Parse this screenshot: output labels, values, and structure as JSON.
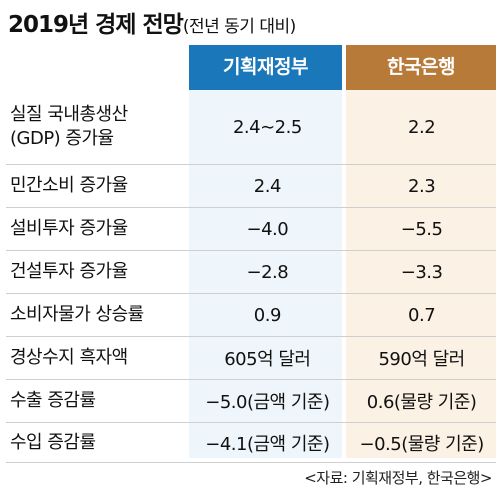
{
  "title": {
    "main": "2019년 경제 전망",
    "sub": "(전년 동기 대비)"
  },
  "columns": {
    "mof": "기획재정부",
    "bok": "한국은행"
  },
  "rows": [
    {
      "label": "실질 국내총생산\n(GDP) 증가율",
      "mof": "2.4∼2.5",
      "bok": "2.2"
    },
    {
      "label": "민간소비 증가율",
      "mof": "2.4",
      "bok": "2.3"
    },
    {
      "label": "설비투자 증가율",
      "mof": "−4.0",
      "bok": "−5.5"
    },
    {
      "label": "건설투자 증가율",
      "mof": "−2.8",
      "bok": "−3.3"
    },
    {
      "label": "소비자물가 상승률",
      "mof": "0.9",
      "bok": "0.7"
    },
    {
      "label": "경상수지 흑자액",
      "mof": "605억 달러",
      "bok": "590억 달러"
    },
    {
      "label": "수출 증감률",
      "mof": "−5.0(금액 기준)",
      "bok": "0.6(물량 기준)"
    },
    {
      "label": "수입 증감률",
      "mof": "−4.1(금액 기준)",
      "bok": "−0.5(물량 기준)"
    }
  ],
  "source": "<자료: 기획재정부, 한국은행>",
  "colors": {
    "mof_header": "#1a77ba",
    "bok_header": "#b87a39",
    "mof_column": "#eef6fb",
    "bok_column": "#fbf1e4"
  }
}
